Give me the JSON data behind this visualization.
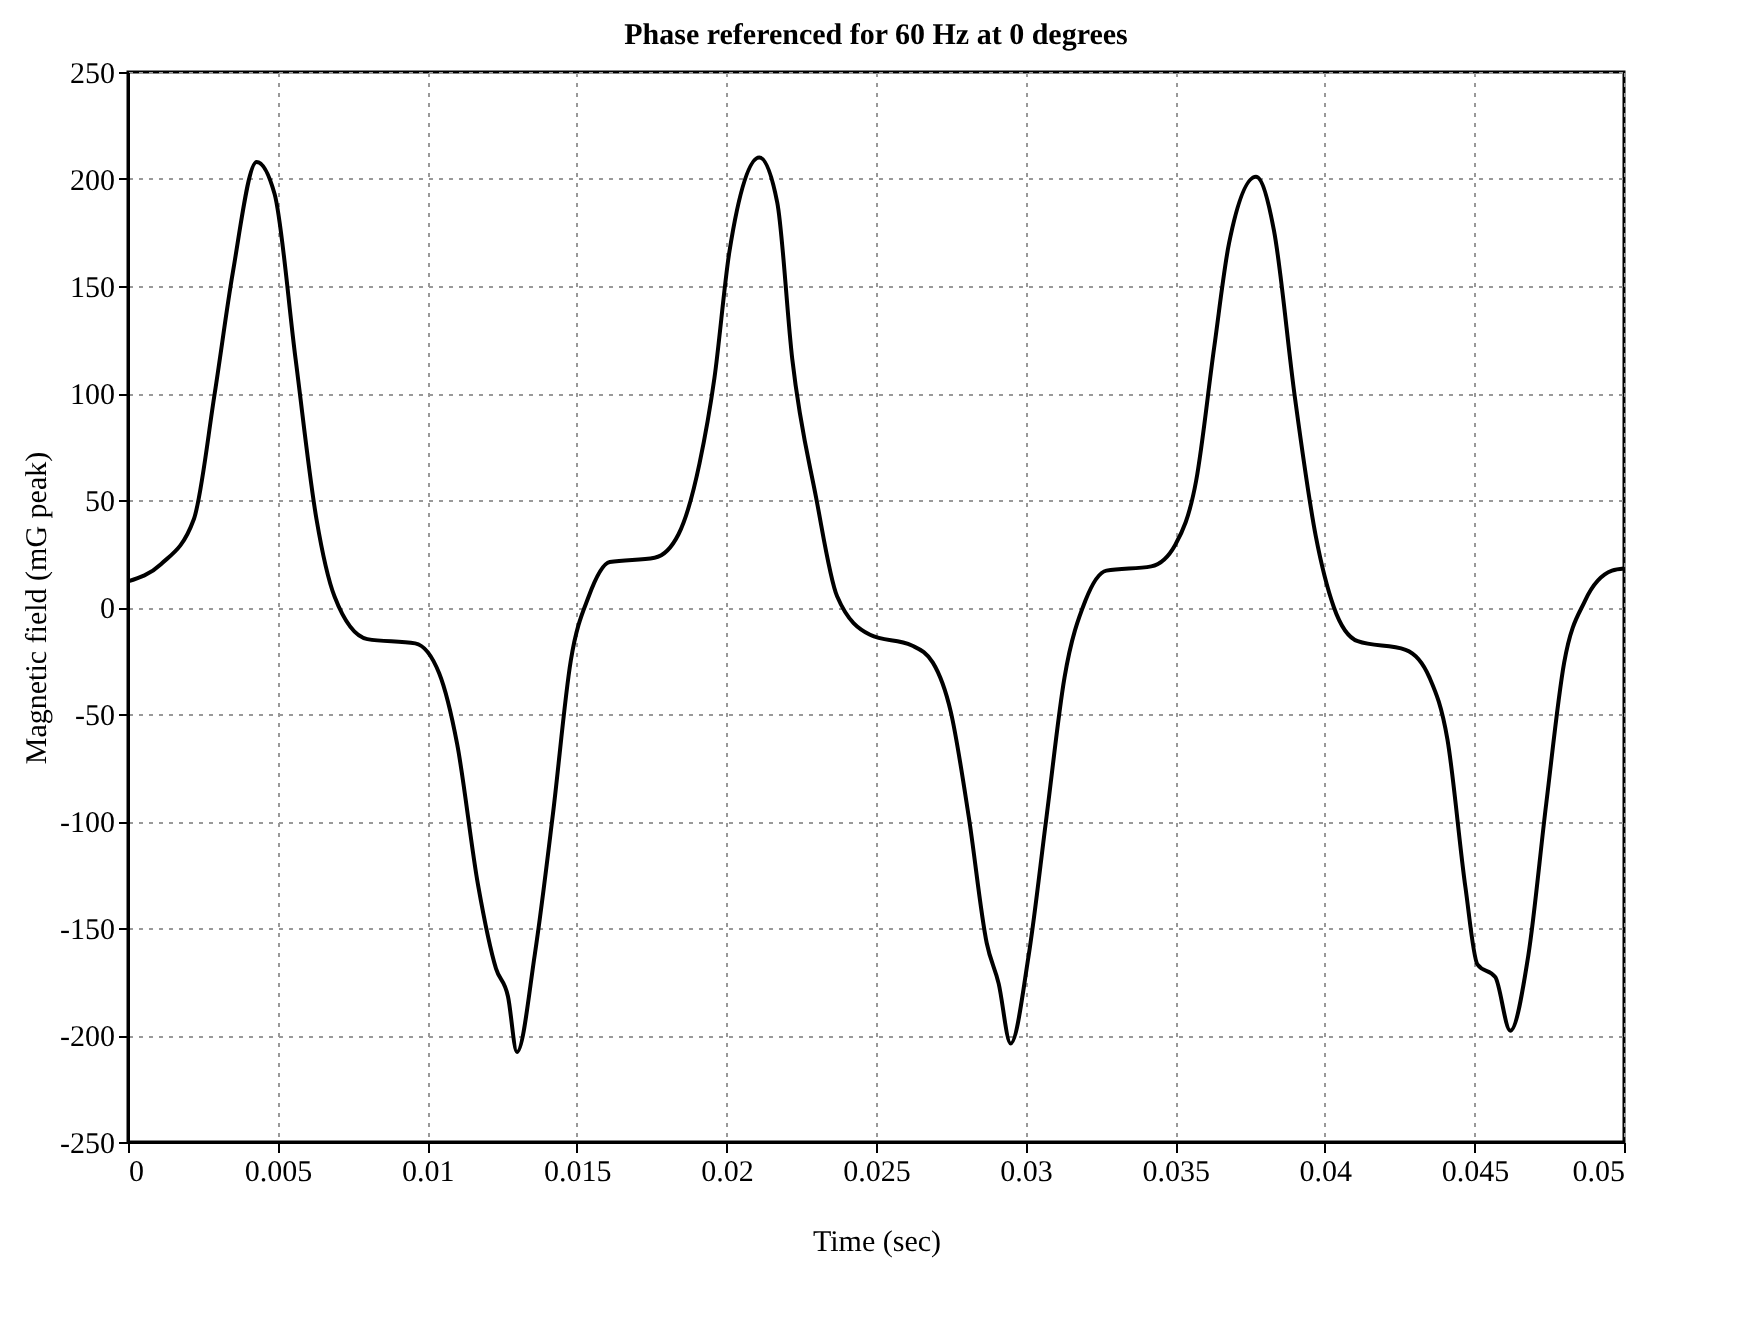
{
  "chart_data": {
    "type": "line",
    "title": "Phase referenced for 60 Hz at 0 degrees",
    "xlabel": "Time (sec)",
    "ylabel": "Magnetic field (mG peak)",
    "x": [
      0,
      0.0011,
      0.0022,
      0.0029,
      0.0035,
      0.0043,
      0.0049,
      0.0056,
      0.0063,
      0.0069,
      0.008,
      0.0096,
      0.0104,
      0.011,
      0.0117,
      0.0123,
      0.0127,
      0.013,
      0.0136,
      0.0142,
      0.0148,
      0.0154,
      0.0161,
      0.0176,
      0.0184,
      0.0191,
      0.0196,
      0.0201,
      0.0211,
      0.0217,
      0.0222,
      0.023,
      0.0237,
      0.0248,
      0.0262,
      0.0269,
      0.0275,
      0.0281,
      0.0287,
      0.0291,
      0.0295,
      0.0301,
      0.0307,
      0.0313,
      0.032,
      0.0327,
      0.0342,
      0.035,
      0.0357,
      0.0363,
      0.0368,
      0.0377,
      0.0383,
      0.039,
      0.0397,
      0.0403,
      0.0411,
      0.0427,
      0.0435,
      0.0441,
      0.0447,
      0.0451,
      0.0457,
      0.0462,
      0.0468,
      0.0474,
      0.048,
      0.0487,
      0.0496,
      0.05
    ],
    "series": [
      {
        "color": "#000000",
        "values": [
          12,
          20,
          41,
          100,
          156,
          208,
          193,
          116,
          41,
          5,
          -15,
          -17,
          -31,
          -64,
          -130,
          -169,
          -182,
          -208,
          -162,
          -97,
          -25,
          5,
          21,
          23,
          34,
          67,
          107,
          166,
          210,
          189,
          116,
          51,
          5,
          -13,
          -18,
          -26,
          -49,
          -98,
          -157,
          -176,
          -204,
          -163,
          -98,
          -33,
          3,
          17,
          19,
          29,
          59,
          121,
          170,
          201,
          176,
          98,
          33,
          0,
          -16,
          -20,
          -33,
          -62,
          -131,
          -167,
          -173,
          -198,
          -163,
          -92,
          -26,
          3,
          17,
          18
        ]
      }
    ],
    "xlim": [
      0,
      0.05
    ],
    "xticks": [
      0,
      0.005,
      0.01,
      0.015,
      0.02,
      0.025,
      0.03,
      0.035,
      0.04,
      0.045,
      0.05
    ],
    "ylim": [
      -250,
      250
    ],
    "yticks": [
      -250,
      -200,
      -150,
      -100,
      -50,
      0,
      50,
      100,
      150,
      200,
      250
    ],
    "grid": true,
    "marker": "none",
    "line_style": "solid"
  }
}
